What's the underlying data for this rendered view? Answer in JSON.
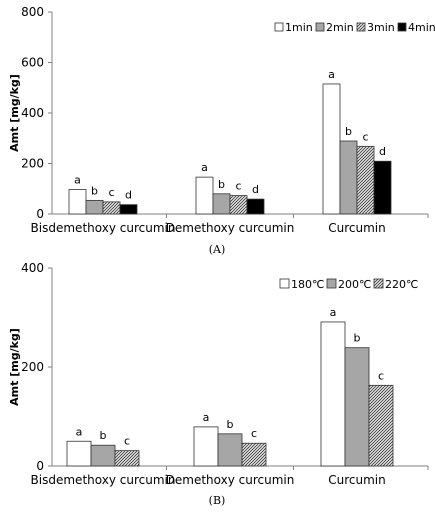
{
  "chart_data": [
    {
      "type": "bar",
      "caption": "(A)",
      "ylabel": "Amt [mg/kg]",
      "ylim": [
        0,
        800
      ],
      "yticks": [
        "0",
        "200",
        "400",
        "600",
        "800"
      ],
      "categories": [
        "Bisdemethoxy curcumin",
        "Demethoxy curcumin",
        "Curcumin"
      ],
      "series": [
        {
          "name": "1min",
          "fill": "white",
          "values": [
            97,
            146,
            515
          ]
        },
        {
          "name": "2min",
          "fill": "gray",
          "values": [
            54,
            80,
            289
          ]
        },
        {
          "name": "3min",
          "fill": "hatch",
          "values": [
            48,
            73,
            268
          ]
        },
        {
          "name": "4min",
          "fill": "black",
          "values": [
            37,
            59,
            209
          ]
        }
      ],
      "annotations": [
        [
          "a",
          "b",
          "c",
          "d"
        ],
        [
          "a",
          "b",
          "c",
          "d"
        ],
        [
          "a",
          "b",
          "c",
          "d"
        ]
      ],
      "legend": "top-right",
      "grid": false
    },
    {
      "type": "bar",
      "caption": "(B)",
      "ylabel": "Amt [mg/kg]",
      "ylim": [
        0,
        400
      ],
      "yticks": [
        "0",
        "200",
        "400"
      ],
      "categories": [
        "Bisdemethoxy curcumin",
        "Demethoxy curcumin",
        "Curcumin"
      ],
      "series": [
        {
          "name": "180℃",
          "fill": "white",
          "values": [
            50,
            79,
            291
          ]
        },
        {
          "name": "200℃",
          "fill": "gray",
          "values": [
            42,
            65,
            239
          ]
        },
        {
          "name": "220℃",
          "fill": "hatch",
          "values": [
            31,
            46,
            163
          ]
        }
      ],
      "annotations": [
        [
          "a",
          "b",
          "c"
        ],
        [
          "a",
          "b",
          "c"
        ],
        [
          "a",
          "b",
          "c"
        ]
      ],
      "legend": "top-right",
      "grid": false
    }
  ],
  "colors": {
    "gray": "#a6a6a6",
    "black": "#000000",
    "white": "#ffffff",
    "hatch_line": "#444444",
    "axis": "#808080"
  }
}
